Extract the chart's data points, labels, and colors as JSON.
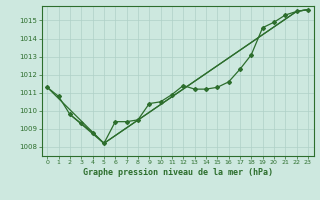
{
  "background_color": "#cde8df",
  "grid_color": "#afd0c8",
  "line_color": "#2d6e2d",
  "title": "Graphe pression niveau de la mer (hPa)",
  "xlim": [
    -0.5,
    23.5
  ],
  "ylim": [
    1007.5,
    1015.8
  ],
  "yticks": [
    1008,
    1009,
    1010,
    1011,
    1012,
    1013,
    1014,
    1015
  ],
  "xticks": [
    0,
    1,
    2,
    3,
    4,
    5,
    6,
    7,
    8,
    9,
    10,
    11,
    12,
    13,
    14,
    15,
    16,
    17,
    18,
    19,
    20,
    21,
    22,
    23
  ],
  "series1": {
    "x": [
      0,
      1,
      2,
      3,
      4,
      5,
      6,
      7,
      8,
      9,
      10,
      11,
      12,
      13,
      14,
      15,
      16,
      17,
      18,
      19,
      20,
      21,
      22,
      23
    ],
    "y": [
      1011.3,
      1010.8,
      1009.8,
      1009.3,
      1008.8,
      1008.2,
      1009.4,
      1009.4,
      1009.5,
      1010.4,
      1010.5,
      1010.9,
      1011.4,
      1011.2,
      1011.2,
      1011.3,
      1011.6,
      1012.3,
      1013.1,
      1014.6,
      1014.9,
      1015.3,
      1015.5,
      1015.6
    ]
  },
  "series2": {
    "x": [
      0,
      5,
      22,
      23
    ],
    "y": [
      1011.3,
      1008.2,
      1015.5,
      1015.6
    ]
  },
  "series3": {
    "x": [
      2,
      5,
      22,
      23
    ],
    "y": [
      1009.8,
      1008.2,
      1015.5,
      1015.6
    ]
  }
}
